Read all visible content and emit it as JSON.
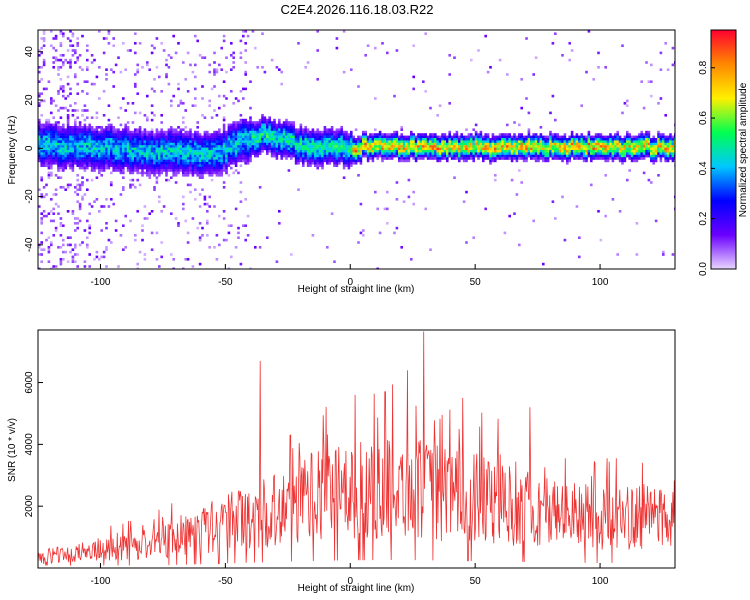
{
  "title": "C2E4.2026.116.18.03.R22",
  "chart_data": [
    {
      "type": "heatmap",
      "title": "",
      "xlabel": "Height of straight line (km)",
      "ylabel": "Frequency (Hz)",
      "xlim": [
        -125,
        130
      ],
      "ylim": [
        -50,
        49
      ],
      "xticks": [
        -100,
        -50,
        0,
        50,
        100
      ],
      "yticks": [
        -40,
        -20,
        0,
        20,
        40
      ],
      "ridge": {
        "x": [
          -125,
          -110,
          -100,
          -90,
          -80,
          -70,
          -60,
          -50,
          -45,
          -40,
          -35,
          -30,
          -25,
          -20,
          -15,
          -10,
          -5,
          0,
          5,
          10,
          20,
          40,
          60,
          80,
          100,
          120,
          130
        ],
        "freq": [
          2,
          1,
          1,
          0,
          -1,
          -1,
          -2,
          0,
          3,
          5,
          6,
          4,
          3,
          2,
          1,
          1,
          1,
          0,
          1,
          2,
          1,
          1,
          1,
          1,
          1,
          1,
          1
        ]
      },
      "colorbar": {
        "label": "Normalized spectral amplitude",
        "range": [
          0.0,
          0.95
        ],
        "ticks": [
          "0.0",
          "0.2",
          "0.4",
          "0.6",
          "0.8"
        ],
        "tick_values": [
          0.0,
          0.2,
          0.4,
          0.6,
          0.8
        ],
        "colors": [
          "#e9d5ff",
          "#6a00ff",
          "#0000ff",
          "#00c8ff",
          "#00ff50",
          "#fff000",
          "#ff8800",
          "#ff0030"
        ]
      }
    },
    {
      "type": "line",
      "title": "",
      "xlabel": "Height of straight line (km)",
      "ylabel": "SNR (10 * v/v)",
      "xlim": [
        -125,
        130
      ],
      "ylim": [
        0,
        7700
      ],
      "xticks": [
        -100,
        -50,
        0,
        50,
        100
      ],
      "yticks": [
        2000,
        4000,
        6000
      ],
      "color": "#ee3333",
      "envelope": {
        "x": [
          -125,
          -100,
          -80,
          -60,
          -40,
          -20,
          0,
          20,
          40,
          60,
          80,
          100,
          130
        ],
        "y": [
          350,
          550,
          800,
          1200,
          1700,
          2200,
          2500,
          2600,
          2400,
          2100,
          1800,
          1600,
          1700
        ]
      },
      "peaks": [
        {
          "x": -36,
          "y": 6700
        },
        {
          "x": -24,
          "y": 4300
        },
        {
          "x": 2,
          "y": 5600
        },
        {
          "x": 14,
          "y": 5700
        },
        {
          "x": 23,
          "y": 6400
        },
        {
          "x": 29.5,
          "y": 7650
        },
        {
          "x": 45,
          "y": 5500
        },
        {
          "x": 72,
          "y": 5200
        }
      ]
    }
  ]
}
